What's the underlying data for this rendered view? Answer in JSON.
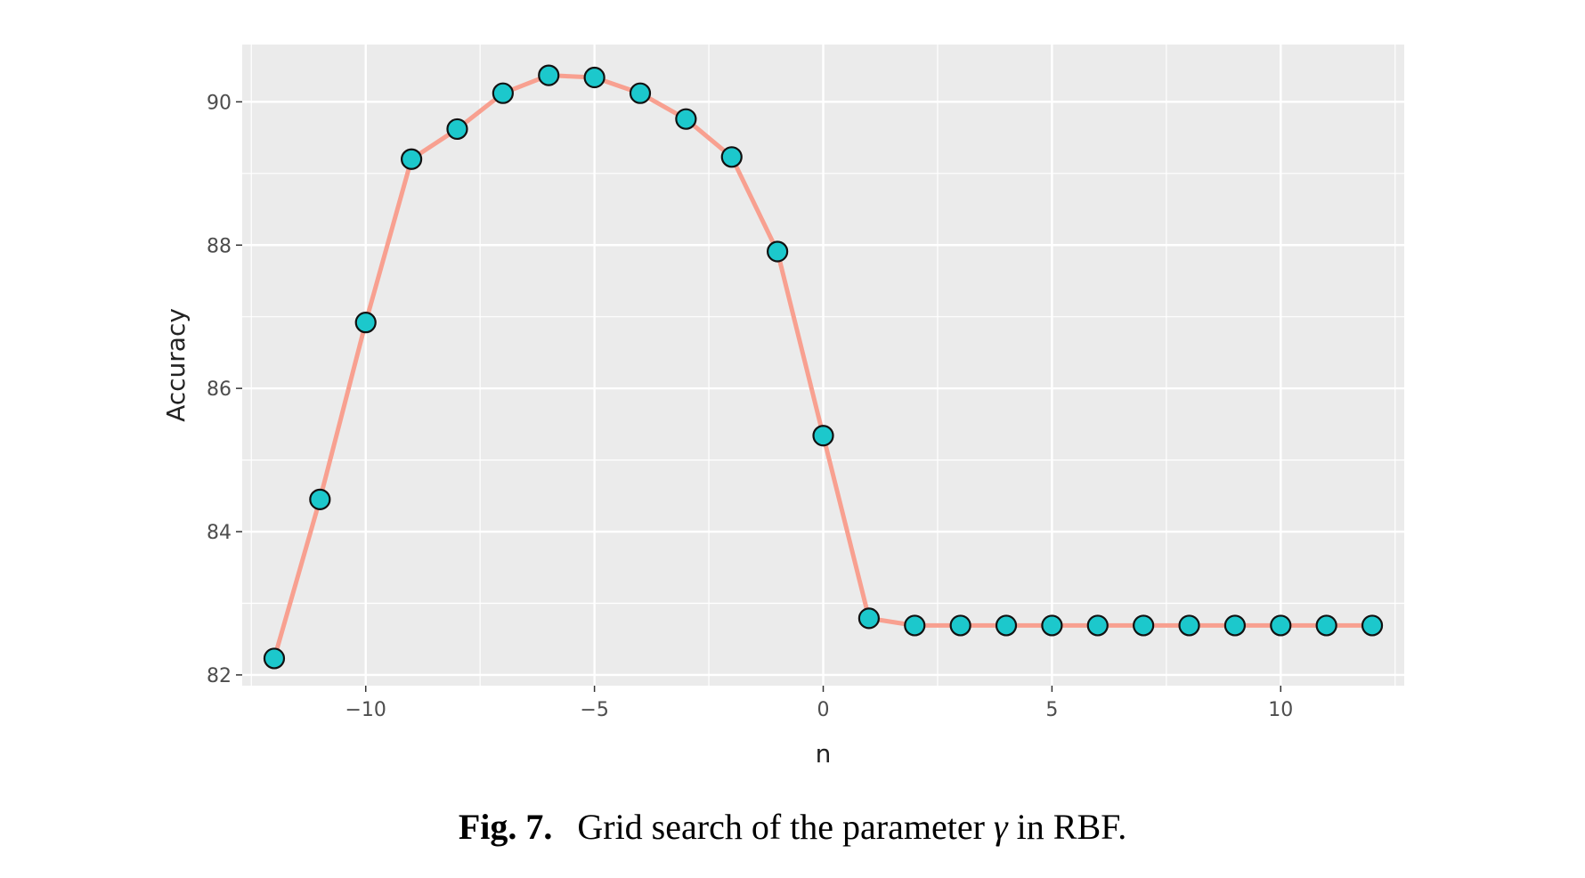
{
  "chart_data": {
    "type": "line",
    "xlabel": "n",
    "ylabel": "Accuracy",
    "xlim": [
      -12.7,
      12.7
    ],
    "ylim": [
      81.85,
      90.8
    ],
    "x_ticks": [
      -10,
      -5,
      0,
      5,
      10
    ],
    "y_ticks": [
      82,
      84,
      86,
      88,
      90
    ],
    "grid": true,
    "x": [
      -12,
      -11,
      -10,
      -9,
      -8,
      -7,
      -6,
      -5,
      -4,
      -3,
      -2,
      -1,
      0,
      1,
      2,
      3,
      4,
      5,
      6,
      7,
      8,
      9,
      10,
      11,
      12
    ],
    "series": [
      {
        "values": [
          82.23,
          84.45,
          86.92,
          89.2,
          89.62,
          90.12,
          90.37,
          90.34,
          90.12,
          89.76,
          89.23,
          87.91,
          85.34,
          82.79,
          82.69,
          82.69,
          82.69,
          82.69,
          82.69,
          82.69,
          82.69,
          82.69,
          82.69,
          82.69,
          82.69
        ]
      }
    ],
    "colors": {
      "panel": "#ebebeb",
      "grid": "#ffffff",
      "line": "#f8a090",
      "point_fill": "#1cc8cc",
      "point_stroke": "#111111"
    }
  },
  "caption": {
    "label": "Fig. 7.",
    "text_before": "Grid search of the parameter",
    "symbol": "γ",
    "text_after": "in RBF."
  }
}
